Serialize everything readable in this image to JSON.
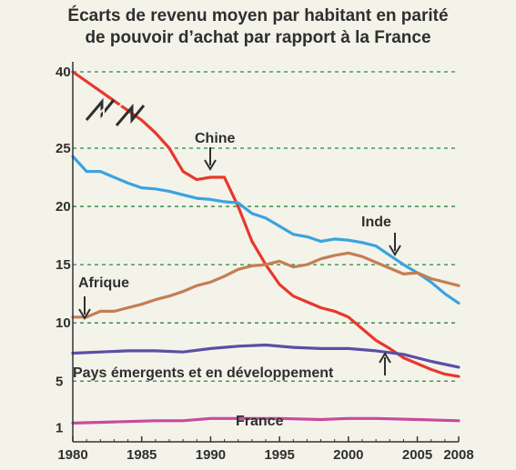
{
  "chart_data": {
    "type": "line",
    "title_lines": [
      "Écarts de revenu moyen par habitant en parité",
      "de pouvoir d’achat par rapport à la France"
    ],
    "xlabel": "",
    "ylabel": "",
    "x_ticks": [
      "1980",
      "1985",
      "1990",
      "1995",
      "2000",
      "2005",
      "2008"
    ],
    "y_ticks": [
      "40",
      "25",
      "20",
      "15",
      "10",
      "5",
      "1"
    ],
    "y_scale": "broken axis between 25 and 40",
    "grid": "horizontal dashed green lines",
    "series": [
      {
        "name": "Chine",
        "color": "#e8382c",
        "x": [
          1980,
          1985,
          1986,
          1987,
          1988,
          1989,
          1990,
          1991,
          1992,
          1993,
          1994,
          1995,
          1996,
          1997,
          1998,
          1999,
          2000,
          2001,
          2002,
          2003,
          2004,
          2005,
          2006,
          2007,
          2008
        ],
        "y": [
          40,
          30.5,
          28,
          25,
          23,
          22.3,
          22.5,
          22.5,
          20,
          17,
          15,
          13.3,
          12.3,
          11.8,
          11.3,
          11,
          10.5,
          9.5,
          8.5,
          7.8,
          7,
          6.5,
          6,
          5.6,
          5.4
        ]
      },
      {
        "name": "Inde",
        "color": "#3aa3e0",
        "x": [
          1980,
          1981,
          1982,
          1983,
          1984,
          1985,
          1986,
          1987,
          1988,
          1989,
          1990,
          1991,
          1992,
          1993,
          1994,
          1995,
          1996,
          1997,
          1998,
          1999,
          2000,
          2001,
          2002,
          2003,
          2004,
          2005,
          2006,
          2007,
          2008
        ],
        "y": [
          24.3,
          23,
          23,
          22.5,
          22,
          21.6,
          21.5,
          21.3,
          21,
          20.7,
          20.6,
          20.4,
          20.3,
          19.4,
          19,
          18.3,
          17.6,
          17.4,
          17,
          17.2,
          17.1,
          16.9,
          16.6,
          15.8,
          15,
          14.3,
          13.5,
          12.5,
          11.7
        ]
      },
      {
        "name": "Afrique",
        "color": "#c47e52",
        "x": [
          1980,
          1981,
          1982,
          1983,
          1984,
          1985,
          1986,
          1987,
          1988,
          1989,
          1990,
          1991,
          1992,
          1993,
          1994,
          1995,
          1996,
          1997,
          1998,
          1999,
          2000,
          2001,
          2002,
          2003,
          2004,
          2005,
          2006,
          2007,
          2008
        ],
        "y": [
          10.5,
          10.5,
          11,
          11,
          11.3,
          11.6,
          12,
          12.3,
          12.7,
          13.2,
          13.5,
          14,
          14.6,
          14.9,
          15,
          15.3,
          14.8,
          15,
          15.5,
          15.8,
          16,
          15.7,
          15.2,
          14.7,
          14.2,
          14.3,
          13.8,
          13.5,
          13.2
        ]
      },
      {
        "name": "Pays émergents et en développement",
        "color": "#5a4fa6",
        "x": [
          1980,
          1982,
          1984,
          1986,
          1988,
          1990,
          1992,
          1994,
          1996,
          1998,
          2000,
          2002,
          2004,
          2006,
          2008
        ],
        "y": [
          7.4,
          7.5,
          7.6,
          7.6,
          7.5,
          7.8,
          8,
          8.1,
          7.9,
          7.8,
          7.8,
          7.6,
          7.3,
          6.7,
          6.2
        ]
      },
      {
        "name": "France",
        "color": "#c94aa0",
        "x": [
          1980,
          1983,
          1986,
          1988,
          1990,
          1992,
          1995,
          1998,
          2000,
          2002,
          2005,
          2008
        ],
        "y": [
          1.4,
          1.5,
          1.6,
          1.6,
          1.8,
          1.8,
          1.8,
          1.7,
          1.8,
          1.8,
          1.7,
          1.6
        ]
      }
    ],
    "annotations": {
      "chine": "Chine",
      "inde": "Inde",
      "afrique": "Afrique",
      "pays": "Pays émergents et en développement",
      "france": "France"
    },
    "colors": {
      "grid": "#1e8a3c",
      "axis": "#333333",
      "text": "#2f2f2f",
      "background": "#f4f3ea"
    }
  }
}
